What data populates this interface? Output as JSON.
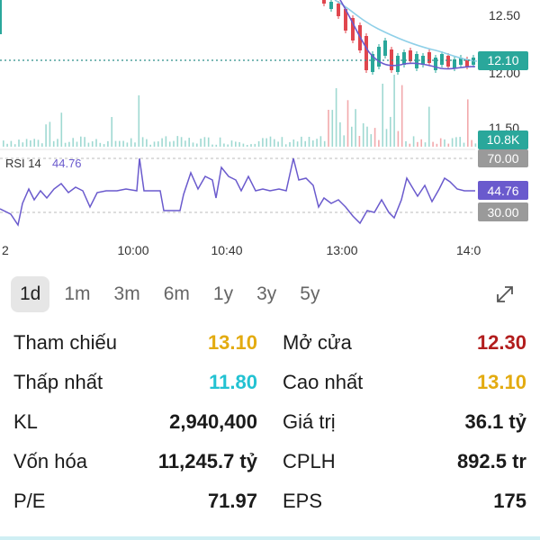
{
  "chart": {
    "price_axis": [
      "12.50",
      "12.00",
      "11.50"
    ],
    "current_price_tag": "12.10",
    "volume_tag": "10.8K",
    "rsi_label": "RSI 14",
    "rsi_value": "44.76",
    "rsi_tag": "44.76",
    "rsi_upper_tag": "70.00",
    "rsi_lower_tag": "30.00",
    "time_axis": [
      "2",
      "10:00",
      "10:40",
      "13:00",
      "14:0"
    ],
    "colors": {
      "up": "#2aa79b",
      "down": "#e0464e",
      "rsi": "#6a5acd",
      "ma": "#8fd0e8",
      "dotted": "#2f8f8a"
    }
  },
  "timeframes": [
    "1d",
    "1m",
    "3m",
    "6m",
    "1y",
    "3y",
    "5y"
  ],
  "active_timeframe": "1d",
  "expand_icon": "expand-icon",
  "stats": {
    "ref_label": "Tham chiếu",
    "ref_value": "13.10",
    "open_label": "Mở cửa",
    "open_value": "12.30",
    "low_label": "Thấp nhất",
    "low_value": "11.80",
    "high_label": "Cao nhất",
    "high_value": "13.10",
    "vol_label": "KL",
    "vol_value": "2,940,400",
    "turnover_label": "Giá trị",
    "turnover_value": "36.1 tỷ",
    "cap_label": "Vốn hóa",
    "cap_value": "11,245.7 tỷ",
    "shares_label": "CPLH",
    "shares_value": "892.5 tr",
    "pe_label": "P/E",
    "pe_value": "71.97",
    "eps_label": "EPS",
    "eps_value": "175"
  }
}
